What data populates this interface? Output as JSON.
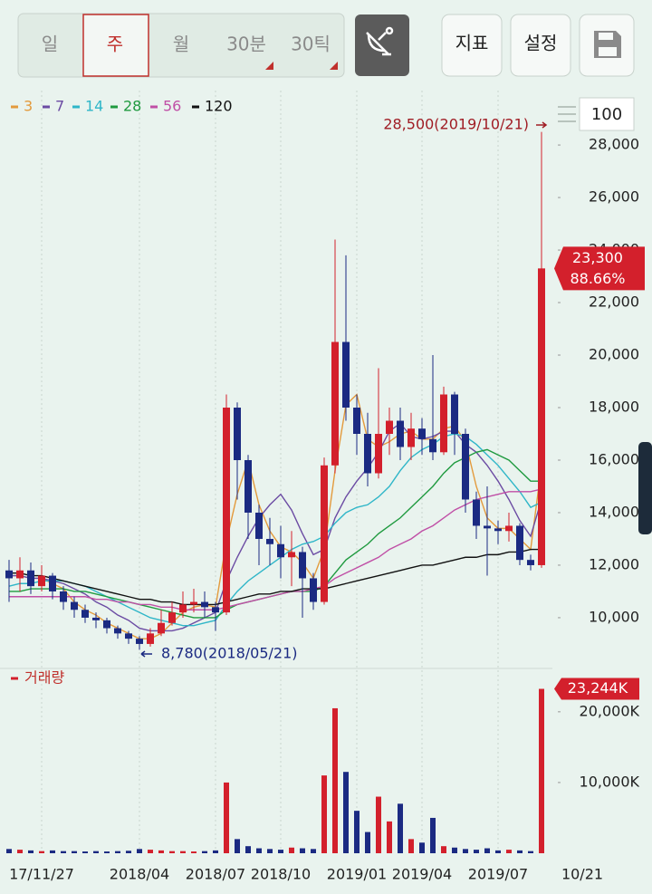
{
  "toolbar": {
    "periods": [
      "일",
      "주",
      "월",
      "30분",
      "30틱"
    ],
    "selected": 1,
    "buttons": [
      "지표",
      "설정"
    ],
    "visible_count": "100"
  },
  "chart_data": {
    "type": "candlestick",
    "categories": [
      null,
      null,
      null,
      "17/11/27",
      null,
      null,
      null,
      null,
      null,
      null,
      null,
      null,
      "2018/04",
      null,
      null,
      null,
      null,
      null,
      null,
      "2018/07",
      null,
      null,
      null,
      null,
      null,
      "2018/10",
      null,
      null,
      null,
      null,
      null,
      null,
      "2019/01",
      null,
      null,
      null,
      null,
      null,
      "2019/04",
      null,
      null,
      null,
      null,
      null,
      null,
      "2019/07",
      null,
      null,
      null,
      "10/21"
    ],
    "open": [
      11800,
      11500,
      11800,
      11200,
      11600,
      11000,
      10600,
      10300,
      10000,
      9900,
      9600,
      9400,
      9200,
      9000,
      9400,
      9800,
      10200,
      10500,
      10600,
      10400,
      10200,
      18000,
      16000,
      14000,
      13000,
      12800,
      12300,
      12500,
      11500,
      10600,
      15800,
      20500,
      18000,
      17000,
      15500,
      17000,
      17500,
      16500,
      17200,
      16800,
      16300,
      18500,
      17000,
      14500,
      13500,
      13400,
      13300,
      13500,
      12200,
      12000
    ],
    "high": [
      12200,
      12300,
      12100,
      12000,
      11700,
      11200,
      10800,
      10500,
      10200,
      10000,
      9700,
      9500,
      9300,
      9600,
      10300,
      10600,
      11000,
      11100,
      11000,
      10600,
      18500,
      18200,
      16200,
      14300,
      13800,
      13500,
      13300,
      12700,
      11700,
      16100,
      24400,
      23800,
      18500,
      17800,
      19500,
      18000,
      18000,
      17800,
      17600,
      20000,
      18800,
      18600,
      17200,
      14800,
      15000,
      13700,
      14000,
      13600,
      12400,
      28500
    ],
    "low": [
      10600,
      11000,
      10900,
      11000,
      10700,
      10300,
      10000,
      9800,
      9600,
      9400,
      9200,
      9000,
      8780,
      8900,
      9300,
      9700,
      10000,
      10200,
      10000,
      9500,
      10100,
      14500,
      13000,
      12000,
      12000,
      11500,
      11200,
      10000,
      10300,
      10500,
      15500,
      17500,
      16200,
      15000,
      15300,
      16200,
      16000,
      16000,
      16200,
      16000,
      16200,
      16200,
      14000,
      13000,
      11600,
      12800,
      12900,
      12000,
      11800,
      11900
    ],
    "close": [
      11500,
      11800,
      11200,
      11600,
      11000,
      10600,
      10300,
      10000,
      9900,
      9600,
      9400,
      9200,
      9000,
      9400,
      9800,
      10200,
      10500,
      10600,
      10400,
      10200,
      18000,
      16000,
      14000,
      13000,
      12800,
      12300,
      12500,
      11500,
      10600,
      15800,
      20500,
      18000,
      17000,
      15500,
      17000,
      17500,
      16500,
      17200,
      16800,
      16300,
      18500,
      17000,
      14500,
      13500,
      13400,
      13300,
      13500,
      12200,
      12000,
      23300
    ],
    "up_color": "#d3202c",
    "down_color": "#1b2a82",
    "ylim": [
      8170,
      29900
    ],
    "yticks": [
      {
        "value": 10000,
        "label": "10,000"
      },
      {
        "value": 12000,
        "label": "12,000"
      },
      {
        "value": 14000,
        "label": "14,000"
      },
      {
        "value": 16000,
        "label": "16,000"
      },
      {
        "value": 18000,
        "label": "18,000"
      },
      {
        "value": 20000,
        "label": "20,000"
      },
      {
        "value": 22000,
        "label": "22,000"
      },
      {
        "value": 24000,
        "label": "24,000"
      },
      {
        "value": 26000,
        "label": "26,000"
      },
      {
        "value": 28000,
        "label": "28,000"
      }
    ],
    "high_annotation": "28,500(2019/10/21)",
    "low_annotation": "8,780(2018/05/21)",
    "last_price_label": "23,300",
    "change_label": "88.66%",
    "moving_averages": [
      {
        "name": "3",
        "color": "#e39a3c",
        "values": [
          11600,
          11600,
          11500,
          11500,
          11300,
          11100,
          10600,
          10300,
          10100,
          9800,
          9600,
          9400,
          9200,
          9200,
          9400,
          9800,
          10200,
          10400,
          10500,
          10400,
          12900,
          14700,
          16000,
          14300,
          13300,
          12700,
          12500,
          12100,
          11500,
          12600,
          15600,
          18100,
          18500,
          16800,
          16500,
          16700,
          17000,
          17100,
          16800,
          16800,
          17200,
          17300,
          16700,
          15000,
          13800,
          13400,
          13400,
          13000,
          12600,
          15800
        ]
      },
      {
        "name": "7",
        "color": "#6b4ba3",
        "values": [
          11600,
          11600,
          11500,
          11500,
          11400,
          11300,
          11100,
          10900,
          10600,
          10400,
          10100,
          9900,
          9600,
          9500,
          9500,
          9500,
          9600,
          9800,
          10000,
          10200,
          11400,
          12300,
          13100,
          13800,
          14300,
          14700,
          14100,
          13200,
          12400,
          12600,
          13800,
          14600,
          15200,
          15700,
          16300,
          17100,
          17400,
          16900,
          16800,
          16900,
          17100,
          17100,
          16600,
          16300,
          15800,
          15200,
          14500,
          13700,
          13100,
          14500
        ]
      },
      {
        "name": "14",
        "color": "#2fb6c8",
        "values": [
          11200,
          11300,
          11300,
          11400,
          11400,
          11400,
          11300,
          11200,
          11000,
          10800,
          10600,
          10400,
          10200,
          10000,
          9900,
          9800,
          9700,
          9700,
          9800,
          9900,
          10500,
          11000,
          11400,
          11700,
          12000,
          12300,
          12600,
          12800,
          12900,
          13100,
          13600,
          14000,
          14200,
          14300,
          14600,
          15000,
          15600,
          16100,
          16400,
          16600,
          16900,
          17000,
          16900,
          16600,
          16200,
          15800,
          15300,
          14800,
          14200,
          14400
        ]
      },
      {
        "name": "28",
        "color": "#1f9a3f",
        "values": [
          11000,
          11000,
          11100,
          11100,
          11100,
          11100,
          11000,
          11000,
          10900,
          10800,
          10700,
          10600,
          10500,
          10400,
          10300,
          10200,
          10100,
          10000,
          10000,
          10000,
          10300,
          10500,
          10600,
          10700,
          10800,
          10900,
          11000,
          11000,
          11000,
          11200,
          11700,
          12200,
          12500,
          12800,
          13200,
          13500,
          13800,
          14200,
          14600,
          15000,
          15500,
          15900,
          16100,
          16300,
          16400,
          16200,
          16000,
          15600,
          15200,
          15200
        ]
      },
      {
        "name": "56",
        "color": "#c04fa6",
        "values": [
          10800,
          10800,
          10800,
          10800,
          10800,
          10800,
          10800,
          10800,
          10700,
          10700,
          10600,
          10600,
          10500,
          10500,
          10400,
          10400,
          10300,
          10300,
          10300,
          10300,
          10400,
          10500,
          10600,
          10700,
          10800,
          10900,
          11000,
          11000,
          11100,
          11200,
          11500,
          11700,
          11900,
          12100,
          12300,
          12600,
          12800,
          13000,
          13300,
          13500,
          13800,
          14100,
          14300,
          14500,
          14600,
          14700,
          14800,
          14800,
          14800,
          14900
        ]
      },
      {
        "name": "120",
        "color": "#111111",
        "values": [
          11700,
          11700,
          11600,
          11600,
          11500,
          11400,
          11300,
          11200,
          11100,
          11000,
          10900,
          10800,
          10700,
          10700,
          10600,
          10600,
          10500,
          10500,
          10500,
          10500,
          10600,
          10700,
          10800,
          10900,
          10900,
          11000,
          11000,
          11100,
          11100,
          11100,
          11200,
          11300,
          11400,
          11500,
          11600,
          11700,
          11800,
          11900,
          12000,
          12000,
          12100,
          12200,
          12300,
          12300,
          12400,
          12400,
          12500,
          12500,
          12600,
          12600
        ]
      }
    ],
    "volume": {
      "name": "거래량",
      "values": [
        600,
        500,
        400,
        300,
        400,
        300,
        300,
        250,
        300,
        250,
        300,
        350,
        600,
        500,
        400,
        300,
        300,
        250,
        300,
        400,
        10000,
        2000,
        1000,
        700,
        600,
        500,
        800,
        700,
        600,
        11000,
        20500,
        11500,
        6000,
        3000,
        8000,
        4500,
        7000,
        2000,
        1500,
        5000,
        1000,
        800,
        600,
        500,
        700,
        400,
        500,
        400,
        300,
        23244
      ],
      "ylim": [
        0,
        26000
      ],
      "yticks": [
        {
          "value": 10000,
          "label": "10,000K"
        },
        {
          "value": 20000,
          "label": "20,000K"
        }
      ],
      "last_label": "23,244K"
    }
  }
}
